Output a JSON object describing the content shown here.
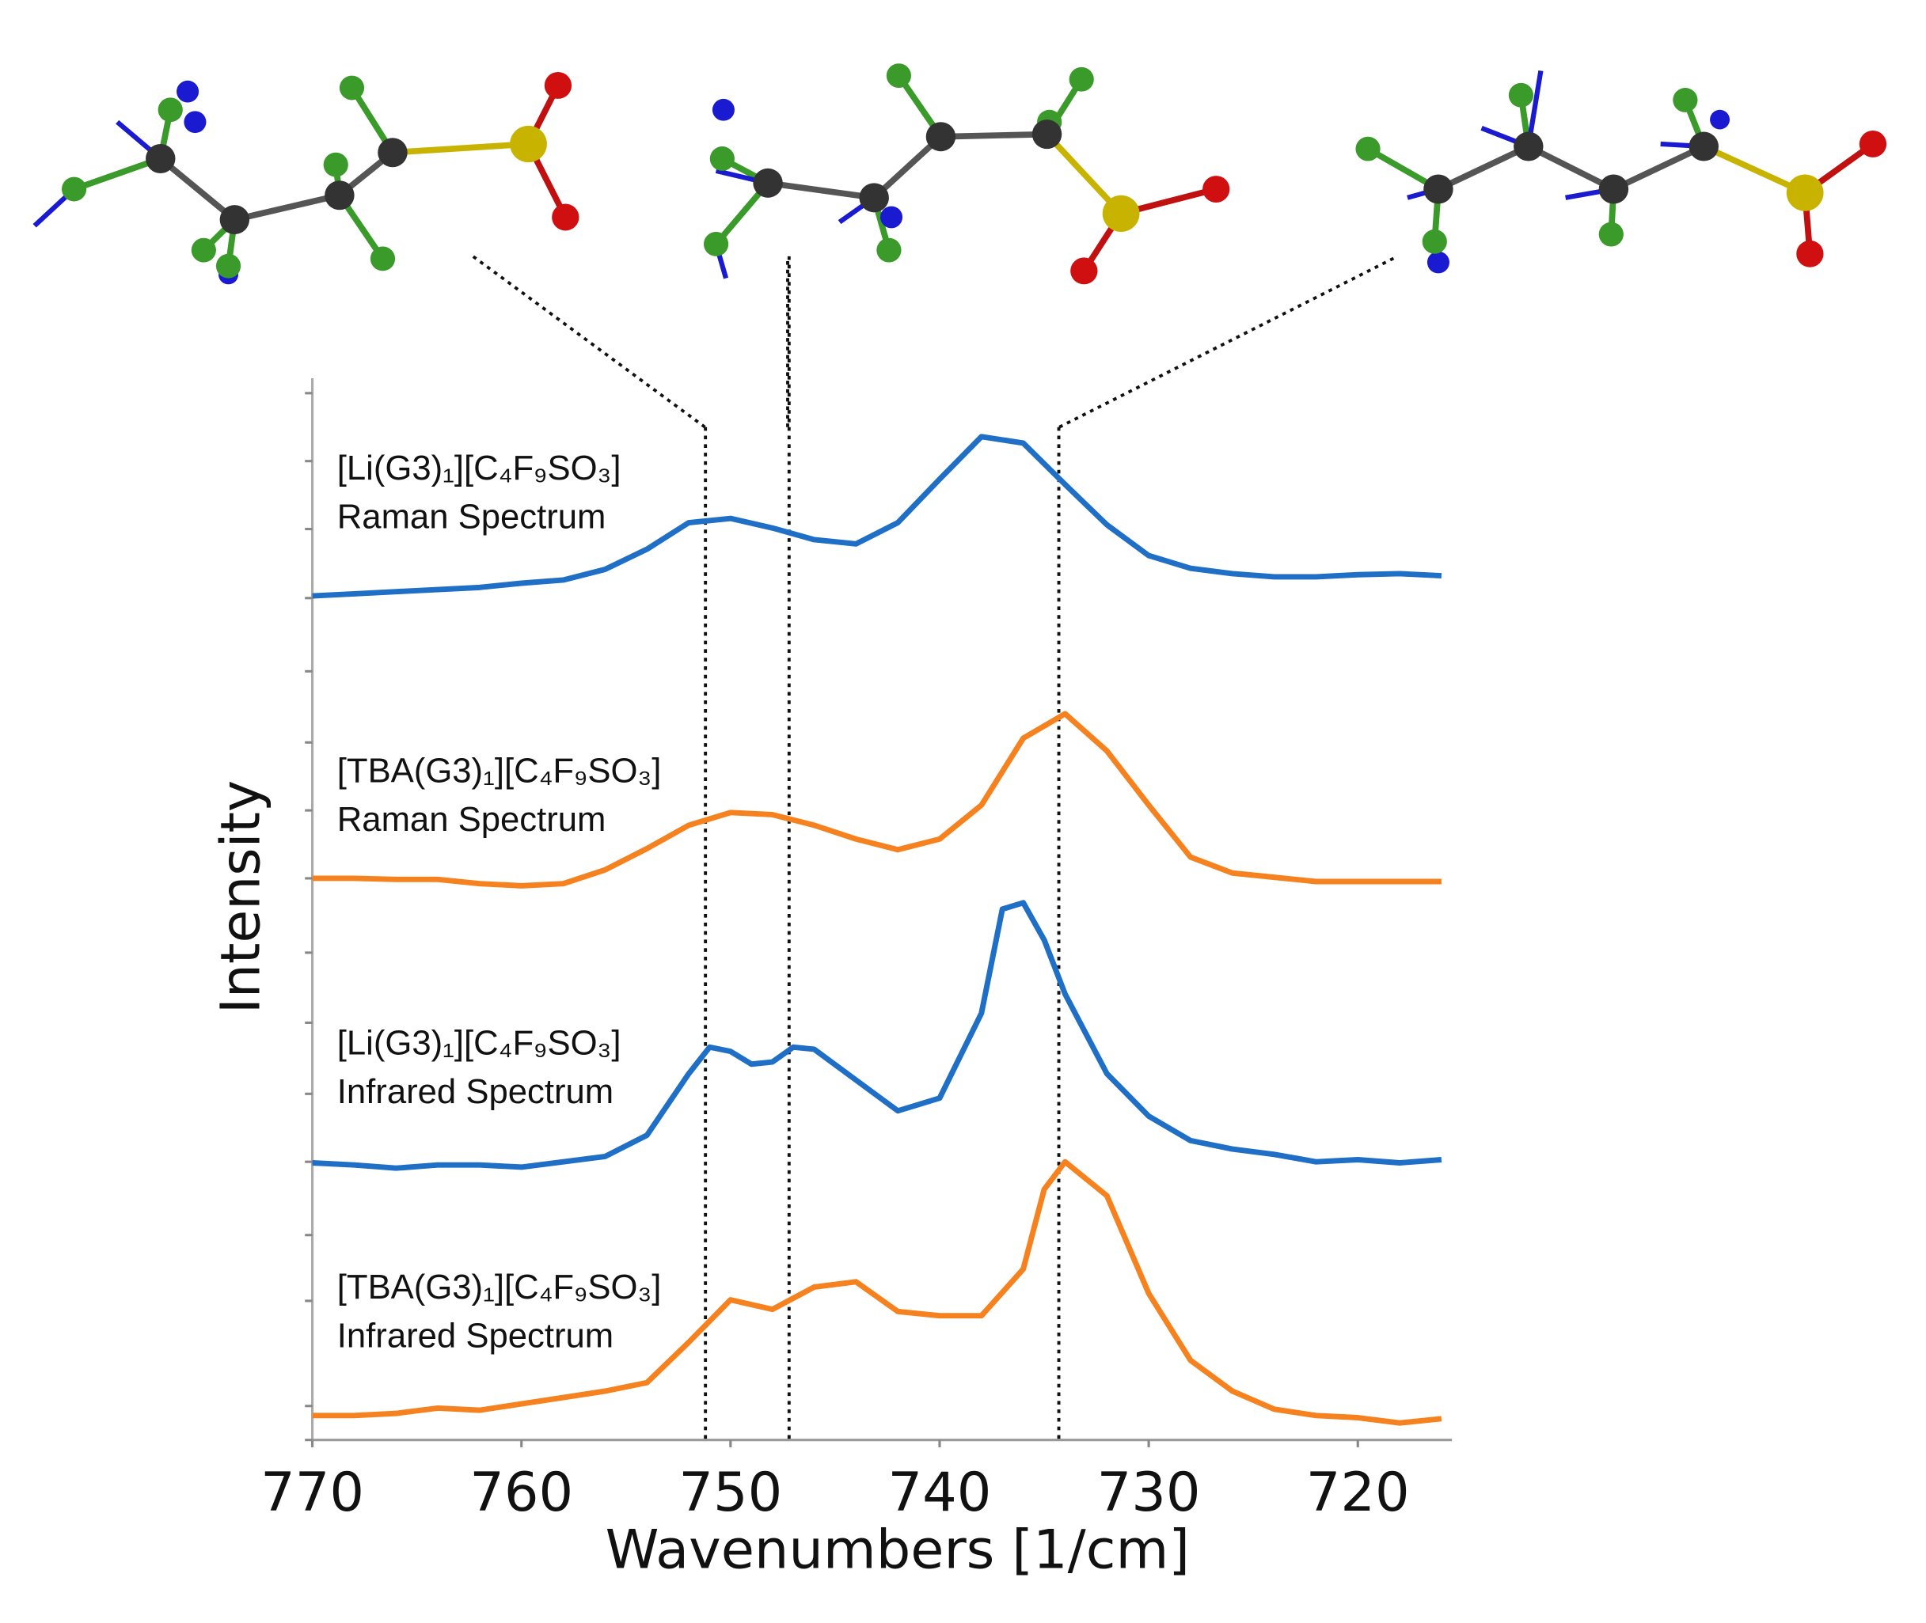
{
  "chart_data": {
    "type": "line",
    "xlabel": "Wavenumbers [1/cm]",
    "ylabel": "Intensity",
    "xlim": [
      770,
      715.5
    ],
    "xticks": [
      770,
      760,
      750,
      740,
      730,
      720
    ],
    "ylim": [
      0,
      100
    ],
    "yticks": [
      0,
      3.2,
      13.1,
      19.3,
      26.2,
      32.6,
      39.3,
      45.9,
      52.9,
      59.3,
      65.7,
      72.4,
      79.3,
      85.8,
      92.2,
      98.6
    ],
    "reference_lines": [
      751.2,
      747.2,
      734.3
    ],
    "series": [
      {
        "name": "[Li(G3)₁][C₄F₉SO₃]",
        "subtitle": "Raman Spectrum",
        "color": "#1f6fc6",
        "x": [
          770,
          768,
          766,
          764,
          762,
          760,
          758,
          756,
          754,
          752,
          750,
          748,
          746,
          744,
          742,
          740,
          738,
          736,
          734,
          732,
          730,
          728,
          726,
          724,
          722,
          720,
          718,
          716
        ],
        "values": [
          79.5,
          79.7,
          79.9,
          80.1,
          80.3,
          80.7,
          81.0,
          82.0,
          83.9,
          86.4,
          86.8,
          85.9,
          84.8,
          84.4,
          86.4,
          90.5,
          94.5,
          93.9,
          90.0,
          86.2,
          83.3,
          82.1,
          81.6,
          81.3,
          81.3,
          81.5,
          81.6,
          81.4
        ]
      },
      {
        "name": "[TBA(G3)₁][C₄F₉SO₃]",
        "subtitle": "Raman Spectrum",
        "color": "#f5821f",
        "x": [
          770,
          768,
          766,
          764,
          762,
          760,
          758,
          756,
          754,
          752,
          750,
          748,
          746,
          744,
          742,
          740,
          738,
          736,
          734,
          732,
          730,
          728,
          726,
          724,
          722,
          720,
          718,
          716
        ],
        "values": [
          52.9,
          52.9,
          52.8,
          52.8,
          52.4,
          52.2,
          52.4,
          53.7,
          55.7,
          57.9,
          59.1,
          58.9,
          57.9,
          56.6,
          55.6,
          56.6,
          59.8,
          66.1,
          68.4,
          64.9,
          59.8,
          54.9,
          53.4,
          53.0,
          52.6,
          52.6,
          52.6,
          52.6
        ]
      },
      {
        "name": "[Li(G3)₁][C₄F₉SO₃]",
        "subtitle": "Infrared Spectrum",
        "color": "#1f6fc6",
        "x": [
          770,
          768,
          766,
          764,
          762,
          760,
          758,
          756,
          754,
          752,
          751,
          750,
          749,
          748,
          747,
          746,
          744,
          742,
          740,
          738,
          737,
          736,
          735,
          734,
          732,
          730,
          728,
          726,
          724,
          722,
          720,
          718,
          716
        ],
        "values": [
          26.1,
          25.9,
          25.6,
          25.9,
          25.9,
          25.7,
          26.2,
          26.7,
          28.7,
          34.5,
          37.0,
          36.6,
          35.4,
          35.6,
          37.0,
          36.8,
          33.9,
          31.0,
          32.2,
          40.2,
          50.0,
          50.6,
          47.1,
          42.0,
          34.5,
          30.5,
          28.2,
          27.4,
          26.9,
          26.2,
          26.4,
          26.1,
          26.4
        ]
      },
      {
        "name": "[TBA(G3)₁][C₄F₉SO₃]",
        "subtitle": "Infrared Spectrum",
        "color": "#f5821f",
        "x": [
          770,
          768,
          766,
          764,
          762,
          760,
          758,
          756,
          754,
          752,
          750,
          748,
          746,
          744,
          742,
          740,
          738,
          736,
          735,
          734,
          732,
          730,
          728,
          726,
          724,
          722,
          720,
          718,
          716
        ],
        "values": [
          2.3,
          2.3,
          2.5,
          3.0,
          2.8,
          3.4,
          4.0,
          4.6,
          5.4,
          9.2,
          13.2,
          12.3,
          14.4,
          14.9,
          12.1,
          11.7,
          11.7,
          16.1,
          23.6,
          26.2,
          23.0,
          13.8,
          7.5,
          4.6,
          2.9,
          2.3,
          2.1,
          1.6,
          2.0
        ]
      }
    ]
  }
}
